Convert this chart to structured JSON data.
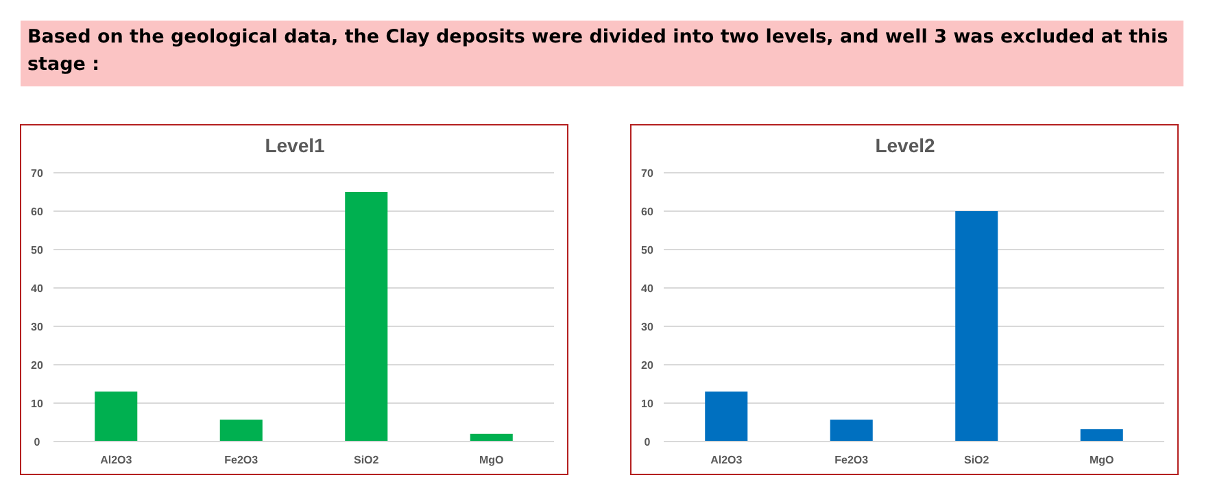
{
  "chart_data": [
    {
      "type": "other",
      "title": "Based on the geological data, the Clay deposits were divided into two levels, and well 3 was excluded at this stage :"
    },
    {
      "type": "bar",
      "title": "Level1",
      "categories": [
        "Al2O3",
        "Fe2O3",
        "SiO2",
        "MgO"
      ],
      "values": [
        13,
        5.7,
        65,
        2
      ],
      "color": "#00b050",
      "ylim": [
        0,
        70
      ],
      "yticks": [
        0,
        10,
        20,
        30,
        40,
        50,
        60,
        70
      ],
      "grid": "y"
    },
    {
      "type": "bar",
      "title": "Level2",
      "categories": [
        "Al2O3",
        "Fe2O3",
        "SiO2",
        "MgO"
      ],
      "values": [
        13,
        5.7,
        60,
        3.2
      ],
      "color": "#0070c0",
      "ylim": [
        0,
        70
      ],
      "yticks": [
        0,
        10,
        20,
        30,
        40,
        50,
        60,
        70
      ],
      "grid": "y"
    }
  ]
}
